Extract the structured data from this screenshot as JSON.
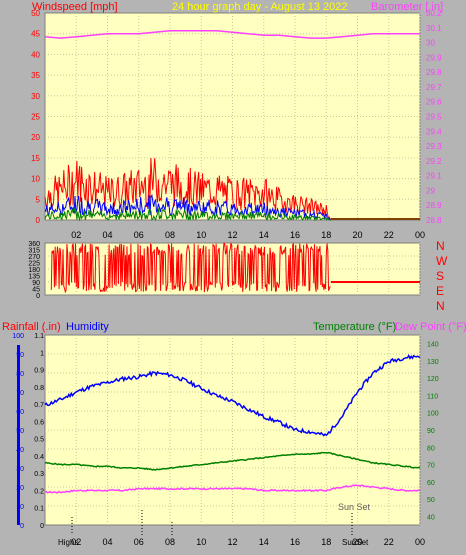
{
  "header": {
    "left_label": "Windspeed [mph]",
    "center_label": "24 hour graph day - August 13 2022",
    "right_label": "Barometer [.in]"
  },
  "colors": {
    "wind": "#ff0000",
    "gust": "#ff0000",
    "avg_wind": "#0000ff",
    "min_wind": "#008000",
    "barometer": "#ff40ff",
    "direction": "#ff0000",
    "humidity": "#0000ff",
    "temperature": "#008000",
    "dewpoint": "#ff40ff",
    "rain": "#0000ff",
    "plot_bg": "#ffffc0",
    "grid": "#c8c8a0",
    "frame_bg": "#b4b4b4"
  },
  "x_axis": {
    "ticks": [
      "02",
      "04",
      "06",
      "08",
      "10",
      "12",
      "14",
      "16",
      "18",
      "20",
      "22",
      "00"
    ],
    "range": [
      0,
      24
    ]
  },
  "bottom_labels": {
    "sunset": "Sun Set",
    "highs": "Highs",
    "hour_02": "02",
    "sunset_marker": "SunSet",
    "hour_20": "20"
  },
  "direction_labels": [
    "N",
    "W",
    "S",
    "E",
    "N"
  ],
  "lower_header": {
    "rainfall": "Rainfall (.in)",
    "humidity": "Humidity",
    "temperature": "Temperature (°F)",
    "dewpoint": "Dew Point (°F)"
  },
  "chart_data": [
    {
      "type": "line",
      "name": "wind-and-barometer",
      "ylim_left": [
        0,
        50
      ],
      "yticks_left": [
        "0",
        "5",
        "10",
        "15",
        "20",
        "25",
        "30",
        "35",
        "40",
        "45",
        "50"
      ],
      "ylim_right": [
        28.8,
        30.2
      ],
      "yticks_right": [
        "28.8",
        "28.9",
        "29",
        "29.1",
        "29.2",
        "29.3",
        "29.4",
        "29.5",
        "29.6",
        "29.7",
        "29.8",
        "29.9",
        "30",
        "30.1",
        "30.2"
      ],
      "series": [
        {
          "name": "Windspeed",
          "x": [
            0,
            1,
            2,
            3,
            4,
            5,
            6,
            7,
            8,
            9,
            10,
            11,
            12,
            13,
            14,
            15,
            16,
            17,
            18,
            18.3,
            24
          ],
          "y": [
            7,
            9,
            12,
            10,
            8,
            9,
            10,
            12,
            11,
            10,
            9,
            9,
            8,
            8,
            8,
            6,
            5,
            4,
            3,
            0,
            0
          ]
        },
        {
          "name": "Barometer",
          "x": [
            0,
            1,
            2,
            3,
            4,
            5,
            6,
            7,
            8,
            9,
            10,
            11,
            12,
            13,
            14,
            15,
            16,
            17,
            18,
            19,
            20,
            21,
            22,
            23,
            24
          ],
          "y": [
            30.04,
            30.03,
            30.04,
            30.05,
            30.06,
            30.06,
            30.06,
            30.07,
            30.08,
            30.08,
            30.08,
            30.08,
            30.07,
            30.06,
            30.05,
            30.05,
            30.04,
            30.03,
            30.03,
            30.04,
            30.05,
            30.06,
            30.06,
            30.06,
            30.06
          ]
        }
      ]
    },
    {
      "type": "line",
      "name": "wind-direction",
      "ylim": [
        0,
        360
      ],
      "yticks": [
        "0",
        "45",
        "90",
        "135",
        "180",
        "225",
        "270",
        "315",
        "360"
      ],
      "series": [
        {
          "name": "Direction",
          "x": [
            0,
            18.3,
            18.3,
            24
          ],
          "y": [
            180,
            180,
            90,
            90
          ]
        }
      ]
    },
    {
      "type": "line",
      "name": "temperature-humidity",
      "ylim_humidity": [
        0,
        100
      ],
      "yticks_humidity": [
        "0",
        "10",
        "20",
        "30",
        "40",
        "50",
        "60",
        "70",
        "80",
        "90",
        "100"
      ],
      "ylim_rain": [
        0,
        1.1
      ],
      "yticks_rain": [
        "0",
        "0.1",
        "0.2",
        "0.3",
        "0.4",
        "0.5",
        "0.6",
        "0.7",
        "0.8",
        "0.9",
        "1",
        "1.1"
      ],
      "ylim_temp": [
        35,
        145
      ],
      "yticks_temp": [
        "40",
        "50",
        "60",
        "70",
        "80",
        "90",
        "100",
        "110",
        "120",
        "130",
        "140"
      ],
      "series": [
        {
          "name": "Humidity",
          "x": [
            0,
            1,
            2,
            3,
            4,
            5,
            6,
            7,
            8,
            9,
            10,
            11,
            12,
            13,
            14,
            15,
            16,
            17,
            18,
            19,
            20,
            21,
            22,
            23,
            24
          ],
          "y": [
            63,
            66,
            70,
            73,
            75,
            77,
            78,
            80,
            79,
            76,
            72,
            68,
            65,
            61,
            57,
            54,
            50,
            49,
            47,
            57,
            70,
            80,
            86,
            88,
            89
          ]
        },
        {
          "name": "Temperature",
          "x": [
            0,
            1,
            2,
            3,
            4,
            5,
            6,
            7,
            8,
            9,
            10,
            11,
            12,
            13,
            14,
            15,
            16,
            17,
            18,
            19,
            20,
            21,
            22,
            23,
            24
          ],
          "y": [
            71,
            70,
            70,
            69,
            69,
            68,
            68,
            67,
            68,
            69,
            70,
            71,
            72,
            73,
            74,
            75,
            76,
            76,
            77,
            75,
            73,
            71,
            70,
            69,
            68
          ]
        },
        {
          "name": "Dew Point",
          "x": [
            0,
            1,
            2,
            3,
            4,
            5,
            6,
            7,
            8,
            9,
            10,
            11,
            12,
            13,
            14,
            15,
            16,
            17,
            18,
            19,
            20,
            21,
            22,
            23,
            24
          ],
          "y": [
            54,
            54,
            55,
            55,
            55,
            55,
            56,
            56,
            56,
            56,
            56,
            56,
            56,
            56,
            55,
            55,
            55,
            55,
            55,
            57,
            58,
            57,
            56,
            55,
            55
          ]
        }
      ]
    }
  ]
}
